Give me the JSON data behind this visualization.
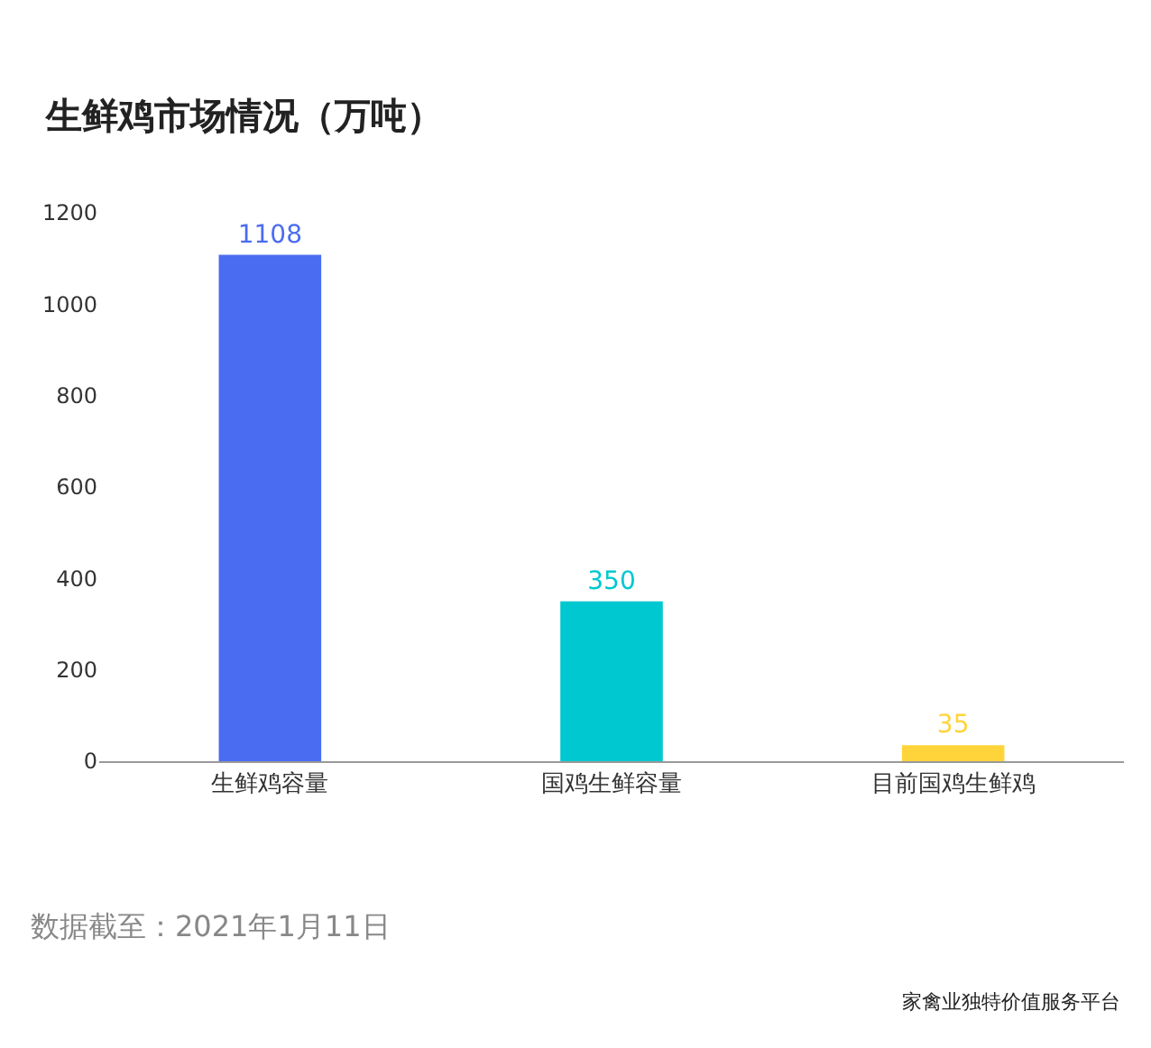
{
  "chart_data": {
    "type": "bar",
    "title": "生鲜鸡市场情况（万吨）",
    "categories": [
      "生鲜鸡容量",
      "国鸡生鲜容量",
      "目前国鸡生鲜鸡"
    ],
    "values": [
      1108,
      350,
      35
    ],
    "colors": [
      "#4a6cf0",
      "#00c8d0",
      "#ffd43b"
    ],
    "ylim": [
      0,
      1200
    ],
    "yticks": [
      0,
      200,
      400,
      600,
      800,
      1000,
      1200
    ],
    "data_labels": true,
    "annotations": [
      "数据截至：2021年1月11日",
      "家禽业独特价值服务平台"
    ]
  }
}
